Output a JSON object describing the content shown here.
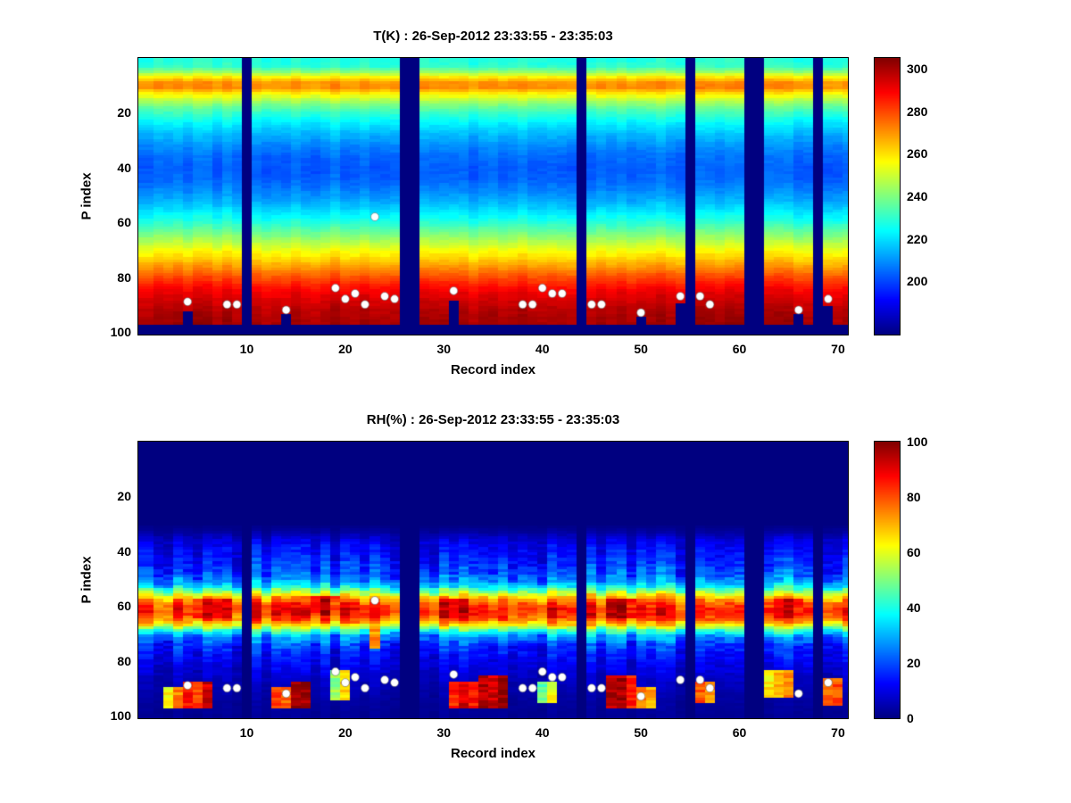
{
  "figure": {
    "background": "#ffffff",
    "colormap": "jet",
    "missing_data_color": "#00008f",
    "dot_color": "#ffffff"
  },
  "chart_data": [
    {
      "type": "heatmap",
      "title": "T(K) : 26-Sep-2012 23:33:55 - 23:35:03",
      "xlabel": "Record index",
      "ylabel": "P index",
      "x_range": [
        -1,
        71
      ],
      "y_range": [
        0,
        101
      ],
      "xticks": [
        10,
        20,
        30,
        40,
        50,
        60,
        70
      ],
      "yticks": [
        20,
        40,
        60,
        80,
        100
      ],
      "records": 71,
      "p_levels": 100,
      "colormap": "jet",
      "value_range": [
        175,
        305
      ],
      "colorbar_ticks": [
        200,
        220,
        240,
        260,
        280,
        300
      ],
      "missing_records": [
        10,
        26,
        27,
        44,
        55,
        61,
        62,
        68
      ],
      "profile_p": [
        1,
        3,
        5,
        7,
        9,
        11,
        13,
        15,
        17,
        20,
        24,
        28,
        32,
        36,
        40,
        44,
        48,
        52,
        56,
        60,
        64,
        68,
        72,
        76,
        80,
        84,
        88,
        92,
        96,
        100
      ],
      "profile_value": [
        228,
        230,
        242,
        258,
        270,
        271,
        259,
        248,
        240,
        231,
        222,
        215,
        209,
        205,
        203,
        204,
        208,
        213,
        220,
        229,
        239,
        249,
        259,
        269,
        279,
        288,
        294,
        298,
        300,
        301
      ],
      "surface_default": 97,
      "surface_overrides": {
        "4": 92,
        "14": 93,
        "31": 88,
        "50": 94,
        "54": 89,
        "66": 93,
        "69": 90
      },
      "noise": {
        "seed": 7,
        "column_amp": 2.5,
        "cell_amp": 1.5
      },
      "noise_scale_by_value": false,
      "dots": [
        [
          4,
          89
        ],
        [
          8,
          90
        ],
        [
          9,
          90
        ],
        [
          14,
          92
        ],
        [
          19,
          84
        ],
        [
          20,
          88
        ],
        [
          21,
          86
        ],
        [
          22,
          90
        ],
        [
          23,
          58
        ],
        [
          24,
          87
        ],
        [
          25,
          88
        ],
        [
          31,
          85
        ],
        [
          38,
          90
        ],
        [
          39,
          90
        ],
        [
          40,
          84
        ],
        [
          41,
          86
        ],
        [
          42,
          86
        ],
        [
          45,
          90
        ],
        [
          46,
          90
        ],
        [
          50,
          93
        ],
        [
          54,
          87
        ],
        [
          56,
          87
        ],
        [
          57,
          90
        ],
        [
          66,
          92
        ],
        [
          69,
          88
        ]
      ]
    },
    {
      "type": "heatmap",
      "title": "RH(%) : 26-Sep-2012 23:33:55 - 23:35:03",
      "xlabel": "Record index",
      "ylabel": "P index",
      "x_range": [
        -1,
        71
      ],
      "y_range": [
        0,
        101
      ],
      "xticks": [
        10,
        20,
        30,
        40,
        50,
        60,
        70
      ],
      "yticks": [
        20,
        40,
        60,
        80,
        100
      ],
      "records": 71,
      "p_levels": 100,
      "colormap": "jet",
      "value_range": [
        0,
        100
      ],
      "colorbar_ticks": [
        0,
        20,
        40,
        60,
        80,
        100
      ],
      "missing_records": [
        10,
        26,
        27,
        44,
        55,
        61,
        62,
        68
      ],
      "profile_p": [
        1,
        30,
        33,
        36,
        39,
        42,
        45,
        48,
        51,
        53,
        55,
        57,
        59,
        61,
        63,
        65,
        67,
        69,
        71,
        74,
        78,
        82,
        86,
        90,
        95,
        100
      ],
      "profile_value": [
        0,
        0,
        3,
        9,
        12,
        14,
        17,
        20,
        26,
        36,
        52,
        68,
        80,
        85,
        84,
        78,
        64,
        44,
        28,
        18,
        13,
        10,
        7,
        5,
        3,
        2
      ],
      "patches": [
        [
          2,
          3,
          90,
          97,
          70
        ],
        [
          4,
          6,
          88,
          97,
          88
        ],
        [
          13,
          14,
          90,
          97,
          75
        ],
        [
          15,
          16,
          88,
          97,
          92
        ],
        [
          19,
          20,
          84,
          94,
          60
        ],
        [
          23,
          23,
          62,
          75,
          68
        ],
        [
          31,
          33,
          88,
          97,
          85
        ],
        [
          34,
          36,
          86,
          97,
          95
        ],
        [
          40,
          41,
          88,
          95,
          55
        ],
        [
          47,
          49,
          86,
          97,
          90
        ],
        [
          50,
          51,
          90,
          97,
          70
        ],
        [
          56,
          57,
          88,
          95,
          75
        ],
        [
          63,
          65,
          84,
          93,
          65
        ],
        [
          69,
          70,
          87,
          96,
          85
        ],
        [
          5,
          8,
          58,
          64,
          90
        ],
        [
          17,
          19,
          57,
          63,
          88
        ],
        [
          30,
          32,
          58,
          64,
          88
        ],
        [
          47,
          49,
          58,
          64,
          90
        ],
        [
          64,
          66,
          58,
          64,
          85
        ]
      ],
      "noise": {
        "seed": 13,
        "column_amp": 8,
        "cell_amp": 5
      },
      "noise_scale_by_value": true,
      "dots": [
        [
          4,
          89
        ],
        [
          8,
          90
        ],
        [
          9,
          90
        ],
        [
          14,
          92
        ],
        [
          19,
          84
        ],
        [
          20,
          88
        ],
        [
          21,
          86
        ],
        [
          22,
          90
        ],
        [
          23,
          58
        ],
        [
          24,
          87
        ],
        [
          25,
          88
        ],
        [
          31,
          85
        ],
        [
          38,
          90
        ],
        [
          39,
          90
        ],
        [
          40,
          84
        ],
        [
          41,
          86
        ],
        [
          42,
          86
        ],
        [
          45,
          90
        ],
        [
          46,
          90
        ],
        [
          50,
          93
        ],
        [
          54,
          87
        ],
        [
          56,
          87
        ],
        [
          57,
          90
        ],
        [
          66,
          92
        ],
        [
          69,
          88
        ]
      ]
    }
  ]
}
